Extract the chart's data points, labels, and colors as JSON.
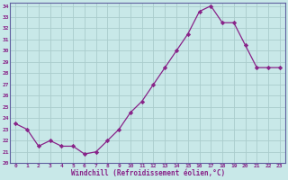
{
  "hours": [
    0,
    1,
    2,
    3,
    4,
    5,
    6,
    7,
    8,
    9,
    10,
    11,
    12,
    13,
    14,
    15,
    16,
    17,
    18,
    19,
    20,
    21,
    22,
    23
  ],
  "values": [
    23.5,
    23.0,
    21.5,
    22.0,
    21.5,
    21.5,
    20.8,
    21.0,
    22.0,
    23.0,
    24.5,
    25.5,
    27.0,
    28.5,
    30.0,
    31.5,
    33.5,
    34.0,
    32.5,
    32.5,
    30.5,
    28.5,
    28.5,
    28.5
  ],
  "line_color": "#882288",
  "marker": "D",
  "marker_size": 2.2,
  "background_color": "#C8E8E8",
  "grid_color": "#AACCCC",
  "xlabel": "Windchill (Refroidissement éolien,°C)",
  "xlabel_color": "#882288",
  "ylim": [
    20,
    34.3
  ],
  "yticks": [
    20,
    21,
    22,
    23,
    24,
    25,
    26,
    27,
    28,
    29,
    30,
    31,
    32,
    33,
    34
  ],
  "xlim": [
    -0.5,
    23.5
  ],
  "xticks": [
    0,
    1,
    2,
    3,
    4,
    5,
    6,
    7,
    8,
    9,
    10,
    11,
    12,
    13,
    14,
    15,
    16,
    17,
    18,
    19,
    20,
    21,
    22,
    23
  ],
  "tick_color": "#882288",
  "spine_color": "#6060A0"
}
